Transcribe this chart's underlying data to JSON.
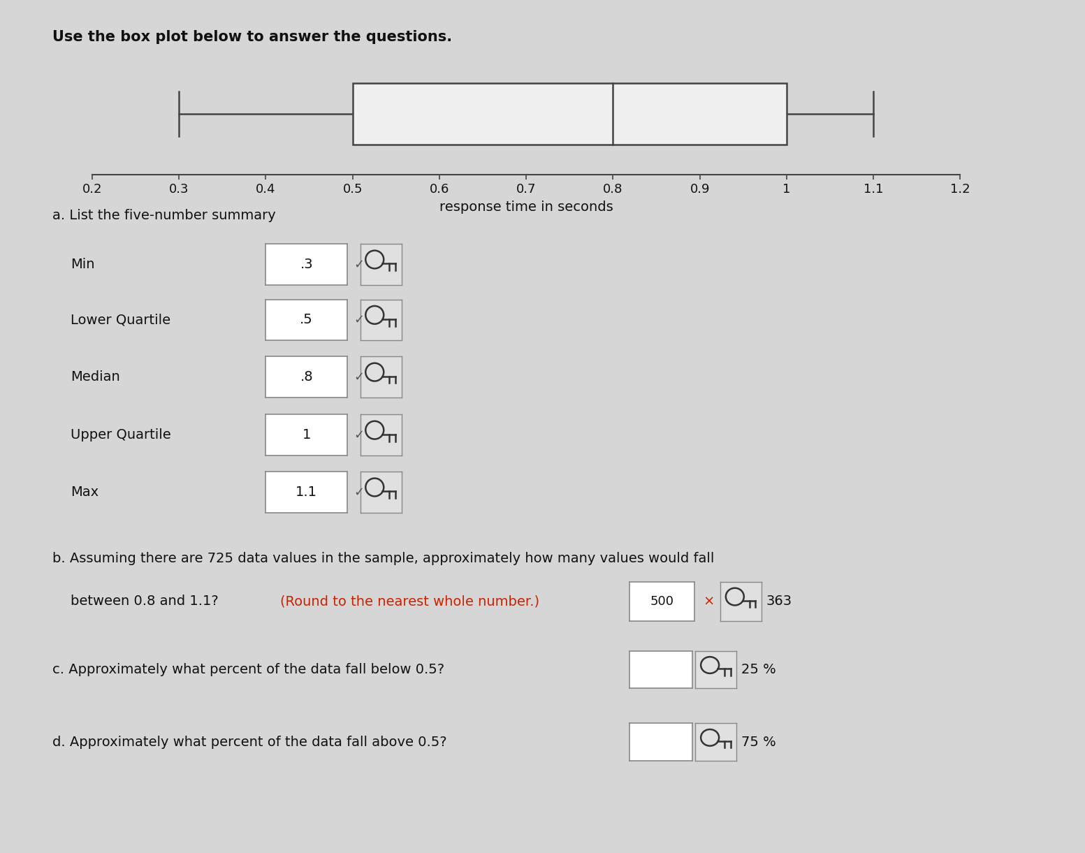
{
  "title": "Use the box plot below to answer the questions.",
  "boxplot": {
    "min": 0.3,
    "q1": 0.5,
    "median": 0.8,
    "q3": 1.0,
    "max": 1.1,
    "axis_min": 0.2,
    "axis_max": 1.2,
    "ticks": [
      0.2,
      0.3,
      0.4,
      0.5,
      0.6,
      0.7,
      0.8,
      0.9,
      1.0,
      1.1,
      1.2
    ],
    "tick_labels": [
      "0.2",
      "0.3",
      "0.4",
      "0.5",
      "0.6",
      "0.7",
      "0.8",
      "0.9",
      "1",
      "1.1",
      "1.2"
    ],
    "xlabel": "response time in seconds"
  },
  "five_number": [
    {
      "label": "Min",
      "value": ".3"
    },
    {
      "label": "Lower Quartile",
      "value": ".5"
    },
    {
      "label": "Median",
      "value": ".8"
    },
    {
      "label": "Upper Quartile",
      "value": "1"
    },
    {
      "label": "Max",
      "value": "1.1"
    }
  ],
  "section_b_line1": "b. Assuming there are 725 data values in the sample, approximately how many values would fall",
  "section_b_line2_plain": "   between 0.8 and 1.1?",
  "section_b_line2_red": " (Round to the nearest whole number.)",
  "section_b_wrong": "500",
  "section_b_correct": "363",
  "section_c": "c. Approximately what percent of the data fall below 0.5?",
  "section_c_answer": "25 %",
  "section_d": "d. Approximately what percent of the data fall above 0.5?",
  "section_d_answer": "75 %",
  "bg_color": "#d6d6d6",
  "box_fill": "#d9d9d9",
  "text_color": "#111111",
  "red_color": "#cc2200",
  "check_color": "#444444",
  "border_color": "#999999"
}
